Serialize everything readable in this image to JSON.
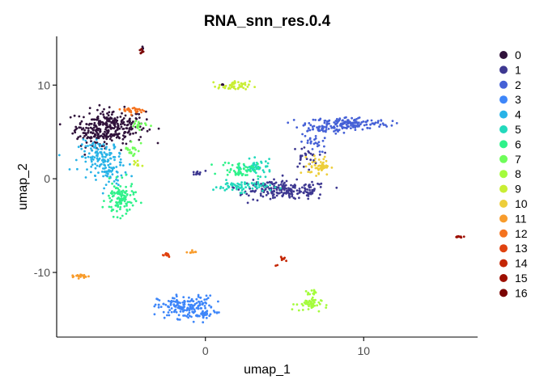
{
  "chart_data": {
    "type": "scatter",
    "title": "RNA_snn_res.0.4",
    "xlabel": "umap_1",
    "ylabel": "umap_2",
    "xlim": [
      -9.4,
      17.2
    ],
    "ylim": [
      -16.9,
      15.2
    ],
    "x_ticks": [
      0,
      10
    ],
    "y_ticks": [
      10,
      0,
      -10
    ],
    "x_tick_labels": [
      "0",
      "10"
    ],
    "y_tick_labels": [
      "10",
      "0",
      "-10"
    ],
    "legend_position": "right",
    "grid": false,
    "series": [
      {
        "name": "0",
        "color": "#30123B",
        "clusters": [
          {
            "cx": -6.0,
            "cy": 5.6,
            "sx": 1.1,
            "sy": 0.9,
            "n": 260
          },
          {
            "cx": -6.9,
            "cy": 4.6,
            "sx": 0.7,
            "sy": 0.6,
            "n": 60
          },
          {
            "cx": -4.0,
            "cy": 13.8,
            "sx": 0.08,
            "sy": 0.15,
            "n": 4
          },
          {
            "cx": 1.1,
            "cy": 10.0,
            "sx": 0.1,
            "sy": 0.05,
            "n": 3
          }
        ]
      },
      {
        "name": "1",
        "color": "#3E3891",
        "clusters": [
          {
            "cx": 5.4,
            "cy": -1.3,
            "sx": 1.2,
            "sy": 0.5,
            "n": 150
          },
          {
            "cx": 3.8,
            "cy": -0.9,
            "sx": 0.9,
            "sy": 0.35,
            "n": 60
          },
          {
            "cx": 6.3,
            "cy": 2.3,
            "sx": 0.4,
            "sy": 0.6,
            "n": 30
          },
          {
            "cx": -0.5,
            "cy": 0.6,
            "sx": 0.25,
            "sy": 0.12,
            "n": 12
          }
        ]
      },
      {
        "name": "2",
        "color": "#4560D6",
        "clusters": [
          {
            "cx": 9.0,
            "cy": 5.9,
            "sx": 1.3,
            "sy": 0.35,
            "n": 150
          },
          {
            "cx": 7.3,
            "cy": 5.3,
            "sx": 0.8,
            "sy": 0.25,
            "n": 40
          },
          {
            "cx": 6.8,
            "cy": 3.8,
            "sx": 0.4,
            "sy": 0.5,
            "n": 25
          }
        ]
      },
      {
        "name": "3",
        "color": "#3E86F9",
        "clusters": [
          {
            "cx": -1.2,
            "cy": -13.7,
            "sx": 0.9,
            "sy": 0.6,
            "n": 180
          },
          {
            "cx": -0.2,
            "cy": -14.6,
            "sx": 0.3,
            "sy": 0.3,
            "n": 20
          }
        ]
      },
      {
        "name": "4",
        "color": "#28B3E7",
        "clusters": [
          {
            "cx": -6.6,
            "cy": 2.4,
            "sx": 0.7,
            "sy": 0.8,
            "n": 120
          },
          {
            "cx": -5.9,
            "cy": 0.5,
            "sx": 0.45,
            "sy": 0.7,
            "n": 50
          }
        ]
      },
      {
        "name": "5",
        "color": "#22D9BC",
        "clusters": [
          {
            "cx": 2.3,
            "cy": -0.8,
            "sx": 0.9,
            "sy": 0.3,
            "n": 70
          },
          {
            "cx": 3.3,
            "cy": 1.2,
            "sx": 0.45,
            "sy": 0.4,
            "n": 50
          }
        ]
      },
      {
        "name": "6",
        "color": "#2FF28A",
        "clusters": [
          {
            "cx": -5.4,
            "cy": -2.2,
            "sx": 0.45,
            "sy": 0.9,
            "n": 110
          },
          {
            "cx": 2.2,
            "cy": 1.0,
            "sx": 0.6,
            "sy": 0.4,
            "n": 50
          }
        ]
      },
      {
        "name": "7",
        "color": "#6EFD5A",
        "clusters": [
          {
            "cx": -4.6,
            "cy": 3.2,
            "sx": 0.25,
            "sy": 0.5,
            "n": 20
          },
          {
            "cx": -4.2,
            "cy": 5.8,
            "sx": 0.35,
            "sy": 0.25,
            "n": 15
          }
        ]
      },
      {
        "name": "8",
        "color": "#A4FC3C",
        "clusters": [
          {
            "cx": 6.5,
            "cy": -13.4,
            "sx": 0.4,
            "sy": 0.35,
            "n": 45
          },
          {
            "cx": 6.6,
            "cy": -12.2,
            "sx": 0.2,
            "sy": 0.15,
            "n": 12
          }
        ]
      },
      {
        "name": "9",
        "color": "#C9EE34",
        "clusters": [
          {
            "cx": 1.8,
            "cy": 9.9,
            "sx": 0.5,
            "sy": 0.25,
            "n": 50
          },
          {
            "cx": -4.4,
            "cy": 1.4,
            "sx": 0.2,
            "sy": 0.3,
            "n": 8
          }
        ]
      },
      {
        "name": "10",
        "color": "#EDCE3A",
        "clusters": [
          {
            "cx": 7.2,
            "cy": 1.4,
            "sx": 0.35,
            "sy": 0.5,
            "n": 50
          }
        ]
      },
      {
        "name": "11",
        "color": "#F89C2C",
        "clusters": [
          {
            "cx": -7.9,
            "cy": -10.4,
            "sx": 0.3,
            "sy": 0.1,
            "n": 22
          },
          {
            "cx": -0.9,
            "cy": -7.8,
            "sx": 0.15,
            "sy": 0.08,
            "n": 8
          }
        ]
      },
      {
        "name": "12",
        "color": "#F4721E",
        "clusters": [
          {
            "cx": -4.5,
            "cy": 7.3,
            "sx": 0.35,
            "sy": 0.2,
            "n": 30
          }
        ]
      },
      {
        "name": "13",
        "color": "#E0420F",
        "clusters": [
          {
            "cx": -2.5,
            "cy": -8.1,
            "sx": 0.18,
            "sy": 0.12,
            "n": 16
          }
        ]
      },
      {
        "name": "14",
        "color": "#C42604",
        "clusters": [
          {
            "cx": 4.9,
            "cy": -8.5,
            "sx": 0.15,
            "sy": 0.15,
            "n": 8
          },
          {
            "cx": 4.5,
            "cy": -9.2,
            "sx": 0.05,
            "sy": 0.05,
            "n": 2
          }
        ]
      },
      {
        "name": "15",
        "color": "#9D0F01",
        "clusters": [
          {
            "cx": 16.0,
            "cy": -6.2,
            "sx": 0.2,
            "sy": 0.06,
            "n": 10
          }
        ]
      },
      {
        "name": "16",
        "color": "#7A0403",
        "clusters": [
          {
            "cx": -4.0,
            "cy": 13.6,
            "sx": 0.08,
            "sy": 0.15,
            "n": 8
          }
        ]
      }
    ]
  }
}
